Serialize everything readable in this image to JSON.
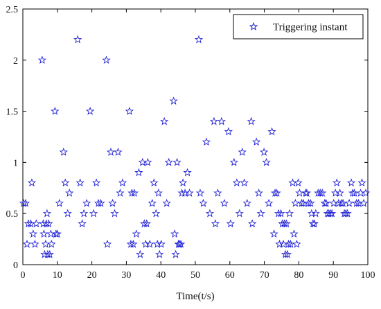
{
  "chart_data": {
    "type": "scatter",
    "xlabel": "Time(t/s)",
    "ylabel": "",
    "xlim": [
      0,
      100
    ],
    "ylim": [
      0,
      2.5
    ],
    "xticks": [
      "0",
      "10",
      "20",
      "30",
      "40",
      "50",
      "60",
      "70",
      "80",
      "90",
      "100"
    ],
    "yticks": [
      "0",
      "0.5",
      "1",
      "1.5",
      "2",
      "2.5"
    ],
    "grid": false,
    "legend_position": "top-right",
    "marker_color": "#1f1fd6",
    "series": [
      {
        "name": "Triggering instant",
        "marker": "star",
        "points": [
          [
            0.2,
            0.6
          ],
          [
            0.8,
            0.6
          ],
          [
            1.2,
            0.2
          ],
          [
            1.6,
            0.4
          ],
          [
            2.3,
            0.4
          ],
          [
            2.6,
            0.8
          ],
          [
            3.0,
            0.3
          ],
          [
            3.5,
            0.2
          ],
          [
            3.9,
            0.4
          ],
          [
            5.6,
            2.0
          ],
          [
            5.9,
            0.4
          ],
          [
            6.1,
            0.3
          ],
          [
            6.3,
            0.1
          ],
          [
            6.6,
            0.2
          ],
          [
            6.8,
            0.4
          ],
          [
            7.0,
            0.5
          ],
          [
            7.2,
            0.1
          ],
          [
            7.5,
            0.4
          ],
          [
            7.8,
            0.1
          ],
          [
            8.1,
            0.3
          ],
          [
            8.3,
            0.2
          ],
          [
            9.3,
            1.5
          ],
          [
            9.6,
            0.3
          ],
          [
            10.0,
            0.3
          ],
          [
            10.6,
            0.6
          ],
          [
            11.8,
            1.1
          ],
          [
            12.3,
            0.8
          ],
          [
            13.0,
            0.5
          ],
          [
            13.5,
            0.7
          ],
          [
            15.9,
            2.2
          ],
          [
            16.6,
            0.8
          ],
          [
            17.2,
            0.4
          ],
          [
            17.7,
            0.5
          ],
          [
            18.5,
            0.6
          ],
          [
            19.5,
            1.5
          ],
          [
            20.5,
            0.5
          ],
          [
            21.3,
            0.8
          ],
          [
            21.9,
            0.6
          ],
          [
            22.6,
            0.6
          ],
          [
            24.2,
            2.0
          ],
          [
            24.5,
            0.2
          ],
          [
            25.5,
            1.1
          ],
          [
            26.0,
            0.6
          ],
          [
            26.6,
            0.5
          ],
          [
            27.6,
            1.1
          ],
          [
            28.2,
            0.7
          ],
          [
            28.9,
            0.8
          ],
          [
            30.9,
            1.5
          ],
          [
            31.3,
            0.2
          ],
          [
            31.6,
            0.7
          ],
          [
            32.0,
            0.2
          ],
          [
            32.3,
            0.7
          ],
          [
            32.9,
            0.3
          ],
          [
            33.6,
            0.9
          ],
          [
            34.0,
            0.1
          ],
          [
            34.7,
            1.0
          ],
          [
            35.2,
            0.4
          ],
          [
            35.6,
            0.2
          ],
          [
            35.9,
            0.4
          ],
          [
            36.2,
            1.0
          ],
          [
            36.8,
            0.2
          ],
          [
            37.5,
            0.6
          ],
          [
            38.0,
            0.8
          ],
          [
            38.6,
            0.5
          ],
          [
            39.0,
            0.2
          ],
          [
            39.3,
            0.7
          ],
          [
            39.6,
            0.1
          ],
          [
            40.1,
            0.2
          ],
          [
            41.0,
            1.4
          ],
          [
            41.7,
            0.6
          ],
          [
            42.3,
            1.0
          ],
          [
            43.7,
            1.6
          ],
          [
            44.0,
            0.3
          ],
          [
            44.3,
            0.1
          ],
          [
            44.7,
            1.0
          ],
          [
            45.1,
            0.2
          ],
          [
            45.4,
            0.2
          ],
          [
            45.8,
            0.2
          ],
          [
            46.1,
            0.7
          ],
          [
            46.4,
            0.8
          ],
          [
            47.0,
            0.7
          ],
          [
            47.7,
            0.9
          ],
          [
            48.3,
            0.7
          ],
          [
            51.0,
            2.2
          ],
          [
            51.4,
            0.7
          ],
          [
            52.3,
            0.6
          ],
          [
            53.2,
            1.2
          ],
          [
            54.2,
            0.5
          ],
          [
            55.4,
            1.4
          ],
          [
            55.8,
            0.4
          ],
          [
            56.5,
            0.7
          ],
          [
            57.6,
            1.4
          ],
          [
            58.4,
            0.6
          ],
          [
            59.6,
            1.3
          ],
          [
            60.2,
            0.4
          ],
          [
            61.2,
            1.0
          ],
          [
            62.0,
            0.8
          ],
          [
            62.8,
            0.5
          ],
          [
            63.6,
            1.1
          ],
          [
            64.2,
            0.8
          ],
          [
            65.0,
            0.6
          ],
          [
            66.2,
            1.4
          ],
          [
            66.5,
            0.4
          ],
          [
            67.7,
            1.2
          ],
          [
            68.4,
            0.7
          ],
          [
            69.0,
            0.5
          ],
          [
            69.9,
            1.1
          ],
          [
            70.6,
            1.0
          ],
          [
            71.3,
            0.6
          ],
          [
            72.2,
            1.3
          ],
          [
            72.8,
            0.3
          ],
          [
            73.1,
            0.7
          ],
          [
            73.6,
            0.7
          ],
          [
            74.1,
            0.5
          ],
          [
            74.4,
            0.2
          ],
          [
            74.8,
            0.5
          ],
          [
            75.2,
            0.4
          ],
          [
            75.5,
            0.2
          ],
          [
            75.8,
            0.4
          ],
          [
            76.1,
            0.1
          ],
          [
            76.4,
            0.4
          ],
          [
            76.7,
            0.1
          ],
          [
            77.0,
            0.2
          ],
          [
            77.3,
            0.5
          ],
          [
            77.6,
            0.2
          ],
          [
            78.2,
            0.8
          ],
          [
            78.6,
            0.3
          ],
          [
            79.0,
            0.6
          ],
          [
            79.4,
            0.2
          ],
          [
            79.8,
            0.8
          ],
          [
            80.2,
            0.7
          ],
          [
            80.8,
            0.6
          ],
          [
            81.3,
            0.6
          ],
          [
            82.0,
            0.7
          ],
          [
            82.3,
            0.7
          ],
          [
            82.8,
            0.6
          ],
          [
            83.4,
            0.6
          ],
          [
            83.7,
            0.5
          ],
          [
            84.1,
            0.4
          ],
          [
            84.5,
            0.4
          ],
          [
            84.9,
            0.5
          ],
          [
            85.6,
            0.7
          ],
          [
            86.2,
            0.7
          ],
          [
            86.8,
            0.7
          ],
          [
            87.5,
            0.6
          ],
          [
            87.9,
            0.6
          ],
          [
            88.3,
            0.5
          ],
          [
            88.7,
            0.5
          ],
          [
            89.2,
            0.5
          ],
          [
            89.6,
            0.5
          ],
          [
            90.1,
            0.6
          ],
          [
            90.6,
            0.7
          ],
          [
            91.0,
            0.8
          ],
          [
            91.5,
            0.6
          ],
          [
            91.9,
            0.7
          ],
          [
            92.3,
            0.6
          ],
          [
            92.8,
            0.6
          ],
          [
            93.2,
            0.5
          ],
          [
            93.6,
            0.5
          ],
          [
            94.1,
            0.5
          ],
          [
            94.6,
            0.6
          ],
          [
            95.2,
            0.8
          ],
          [
            95.6,
            0.7
          ],
          [
            96.1,
            0.7
          ],
          [
            96.7,
            0.6
          ],
          [
            97.3,
            0.6
          ],
          [
            97.9,
            0.7
          ],
          [
            98.3,
            0.8
          ],
          [
            98.8,
            0.6
          ],
          [
            99.4,
            0.7
          ]
        ]
      }
    ]
  }
}
